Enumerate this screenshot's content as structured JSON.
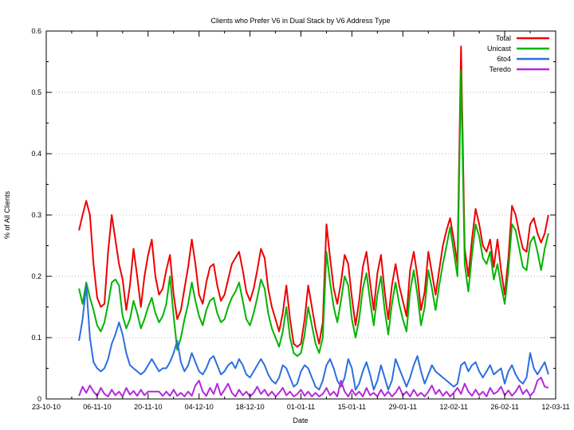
{
  "chart_data": {
    "type": "line",
    "title": "Clients who Prefer V6 in Dual Stack by V6 Address Type",
    "xlabel": "Date",
    "ylabel": "% of All Clients",
    "ylim": [
      0,
      0.6
    ],
    "y_tick_step": 0.1,
    "y_minor_step": 0.05,
    "y_tick_labels": [
      "0",
      "0.1",
      "0.2",
      "0.3",
      "0.4",
      "0.5",
      "0.6"
    ],
    "grid": {
      "horizontal": true,
      "vertical": false,
      "style": "dotted",
      "color": "#b8b8b8"
    },
    "legend": {
      "position": "top-right-inside",
      "entries": [
        "Total",
        "Unicast",
        "6to4",
        "Teredo"
      ]
    },
    "x_axis": {
      "total_days": 140,
      "tick_interval_days": 14,
      "minor_interval_days": 7,
      "tick_labels": [
        "23-10-10",
        "06-11-10",
        "20-11-10",
        "04-12-10",
        "18-12-10",
        "01-01-11",
        "15-01-11",
        "29-01-11",
        "12-02-11",
        "26-02-11",
        "12-03-11"
      ]
    },
    "series_start_day": 9,
    "series": [
      {
        "name": "Total",
        "color": "#ee0000",
        "values": [
          0.275,
          0.3,
          0.323,
          0.3,
          0.22,
          0.165,
          0.15,
          0.155,
          0.24,
          0.3,
          0.26,
          0.22,
          0.195,
          0.145,
          0.185,
          0.245,
          0.2,
          0.15,
          0.2,
          0.235,
          0.26,
          0.2,
          0.17,
          0.18,
          0.21,
          0.235,
          0.17,
          0.13,
          0.145,
          0.18,
          0.215,
          0.26,
          0.22,
          0.17,
          0.155,
          0.19,
          0.215,
          0.22,
          0.185,
          0.16,
          0.17,
          0.195,
          0.22,
          0.23,
          0.24,
          0.21,
          0.175,
          0.16,
          0.18,
          0.21,
          0.245,
          0.23,
          0.18,
          0.15,
          0.13,
          0.11,
          0.14,
          0.185,
          0.13,
          0.09,
          0.085,
          0.09,
          0.13,
          0.185,
          0.15,
          0.115,
          0.09,
          0.125,
          0.285,
          0.23,
          0.18,
          0.155,
          0.19,
          0.235,
          0.22,
          0.165,
          0.12,
          0.16,
          0.215,
          0.24,
          0.19,
          0.145,
          0.205,
          0.235,
          0.175,
          0.13,
          0.185,
          0.22,
          0.185,
          0.16,
          0.135,
          0.21,
          0.24,
          0.2,
          0.145,
          0.175,
          0.24,
          0.205,
          0.17,
          0.21,
          0.25,
          0.275,
          0.295,
          0.26,
          0.22,
          0.575,
          0.245,
          0.2,
          0.26,
          0.31,
          0.285,
          0.25,
          0.24,
          0.26,
          0.215,
          0.26,
          0.21,
          0.17,
          0.23,
          0.315,
          0.3,
          0.27,
          0.245,
          0.24,
          0.285,
          0.295,
          0.27,
          0.255,
          0.27,
          0.3
        ]
      },
      {
        "name": "Unicast",
        "color": "#00b400",
        "values": [
          0.18,
          0.155,
          0.19,
          0.165,
          0.145,
          0.12,
          0.11,
          0.125,
          0.155,
          0.19,
          0.195,
          0.185,
          0.135,
          0.115,
          0.13,
          0.16,
          0.14,
          0.115,
          0.13,
          0.15,
          0.165,
          0.14,
          0.125,
          0.135,
          0.155,
          0.2,
          0.135,
          0.08,
          0.1,
          0.13,
          0.155,
          0.19,
          0.16,
          0.135,
          0.12,
          0.145,
          0.16,
          0.165,
          0.14,
          0.125,
          0.13,
          0.15,
          0.165,
          0.175,
          0.19,
          0.16,
          0.13,
          0.12,
          0.14,
          0.165,
          0.195,
          0.18,
          0.14,
          0.115,
          0.1,
          0.085,
          0.11,
          0.15,
          0.1,
          0.075,
          0.07,
          0.075,
          0.105,
          0.15,
          0.12,
          0.09,
          0.075,
          0.1,
          0.24,
          0.19,
          0.15,
          0.125,
          0.16,
          0.2,
          0.185,
          0.13,
          0.1,
          0.13,
          0.18,
          0.205,
          0.16,
          0.12,
          0.17,
          0.2,
          0.145,
          0.105,
          0.155,
          0.19,
          0.155,
          0.13,
          0.11,
          0.175,
          0.21,
          0.17,
          0.12,
          0.15,
          0.21,
          0.18,
          0.145,
          0.185,
          0.22,
          0.25,
          0.28,
          0.24,
          0.2,
          0.535,
          0.22,
          0.175,
          0.235,
          0.285,
          0.265,
          0.23,
          0.22,
          0.24,
          0.195,
          0.22,
          0.185,
          0.155,
          0.21,
          0.285,
          0.275,
          0.245,
          0.215,
          0.21,
          0.255,
          0.265,
          0.24,
          0.21,
          0.245,
          0.27
        ]
      },
      {
        "name": "6to4",
        "color": "#2b6fe0",
        "values": [
          0.095,
          0.13,
          0.185,
          0.1,
          0.06,
          0.05,
          0.045,
          0.05,
          0.065,
          0.09,
          0.105,
          0.125,
          0.105,
          0.075,
          0.055,
          0.05,
          0.045,
          0.04,
          0.045,
          0.055,
          0.065,
          0.055,
          0.045,
          0.05,
          0.05,
          0.06,
          0.075,
          0.095,
          0.06,
          0.045,
          0.055,
          0.075,
          0.06,
          0.045,
          0.04,
          0.05,
          0.065,
          0.07,
          0.055,
          0.04,
          0.045,
          0.055,
          0.06,
          0.05,
          0.065,
          0.055,
          0.04,
          0.035,
          0.045,
          0.055,
          0.065,
          0.055,
          0.04,
          0.03,
          0.025,
          0.035,
          0.055,
          0.05,
          0.035,
          0.02,
          0.025,
          0.045,
          0.055,
          0.05,
          0.035,
          0.02,
          0.015,
          0.03,
          0.055,
          0.065,
          0.05,
          0.03,
          0.02,
          0.035,
          0.065,
          0.05,
          0.015,
          0.025,
          0.045,
          0.06,
          0.04,
          0.015,
          0.03,
          0.055,
          0.035,
          0.015,
          0.03,
          0.065,
          0.05,
          0.035,
          0.02,
          0.035,
          0.055,
          0.07,
          0.045,
          0.025,
          0.04,
          0.055,
          0.045,
          0.04,
          0.035,
          0.03,
          0.025,
          0.02,
          0.025,
          0.055,
          0.06,
          0.045,
          0.055,
          0.06,
          0.045,
          0.035,
          0.045,
          0.055,
          0.04,
          0.045,
          0.05,
          0.025,
          0.045,
          0.055,
          0.04,
          0.03,
          0.025,
          0.035,
          0.075,
          0.05,
          0.04,
          0.05,
          0.06,
          0.04
        ]
      },
      {
        "name": "Teredo",
        "color": "#b428dc",
        "values": [
          0.005,
          0.02,
          0.01,
          0.022,
          0.012,
          0.005,
          0.018,
          0.008,
          0.004,
          0.015,
          0.006,
          0.012,
          0.004,
          0.018,
          0.007,
          0.013,
          0.005,
          0.015,
          0.006,
          0.012,
          0.012,
          0.012,
          0.012,
          0.005,
          0.012,
          0.005,
          0.015,
          0.005,
          0.01,
          0.004,
          0.012,
          0.005,
          0.022,
          0.03,
          0.012,
          0.005,
          0.018,
          0.008,
          0.025,
          0.006,
          0.015,
          0.025,
          0.01,
          0.004,
          0.015,
          0.006,
          0.012,
          0.004,
          0.01,
          0.02,
          0.008,
          0.015,
          0.005,
          0.012,
          0.004,
          0.01,
          0.018,
          0.006,
          0.012,
          0.004,
          0.008,
          0.015,
          0.005,
          0.012,
          0.004,
          0.01,
          0.004,
          0.008,
          0.018,
          0.006,
          0.012,
          0.004,
          0.03,
          0.012,
          0.004,
          0.015,
          0.006,
          0.012,
          0.004,
          0.018,
          0.006,
          0.01,
          0.004,
          0.015,
          0.005,
          0.012,
          0.004,
          0.01,
          0.02,
          0.006,
          0.012,
          0.004,
          0.015,
          0.005,
          0.01,
          0.004,
          0.012,
          0.022,
          0.008,
          0.015,
          0.005,
          0.012,
          0.004,
          0.01,
          0.018,
          0.008,
          0.025,
          0.012,
          0.005,
          0.015,
          0.006,
          0.012,
          0.004,
          0.018,
          0.008,
          0.012,
          0.02,
          0.006,
          0.014,
          0.005,
          0.012,
          0.022,
          0.008,
          0.015,
          0.005,
          0.012,
          0.03,
          0.035,
          0.02,
          0.018
        ]
      }
    ]
  }
}
